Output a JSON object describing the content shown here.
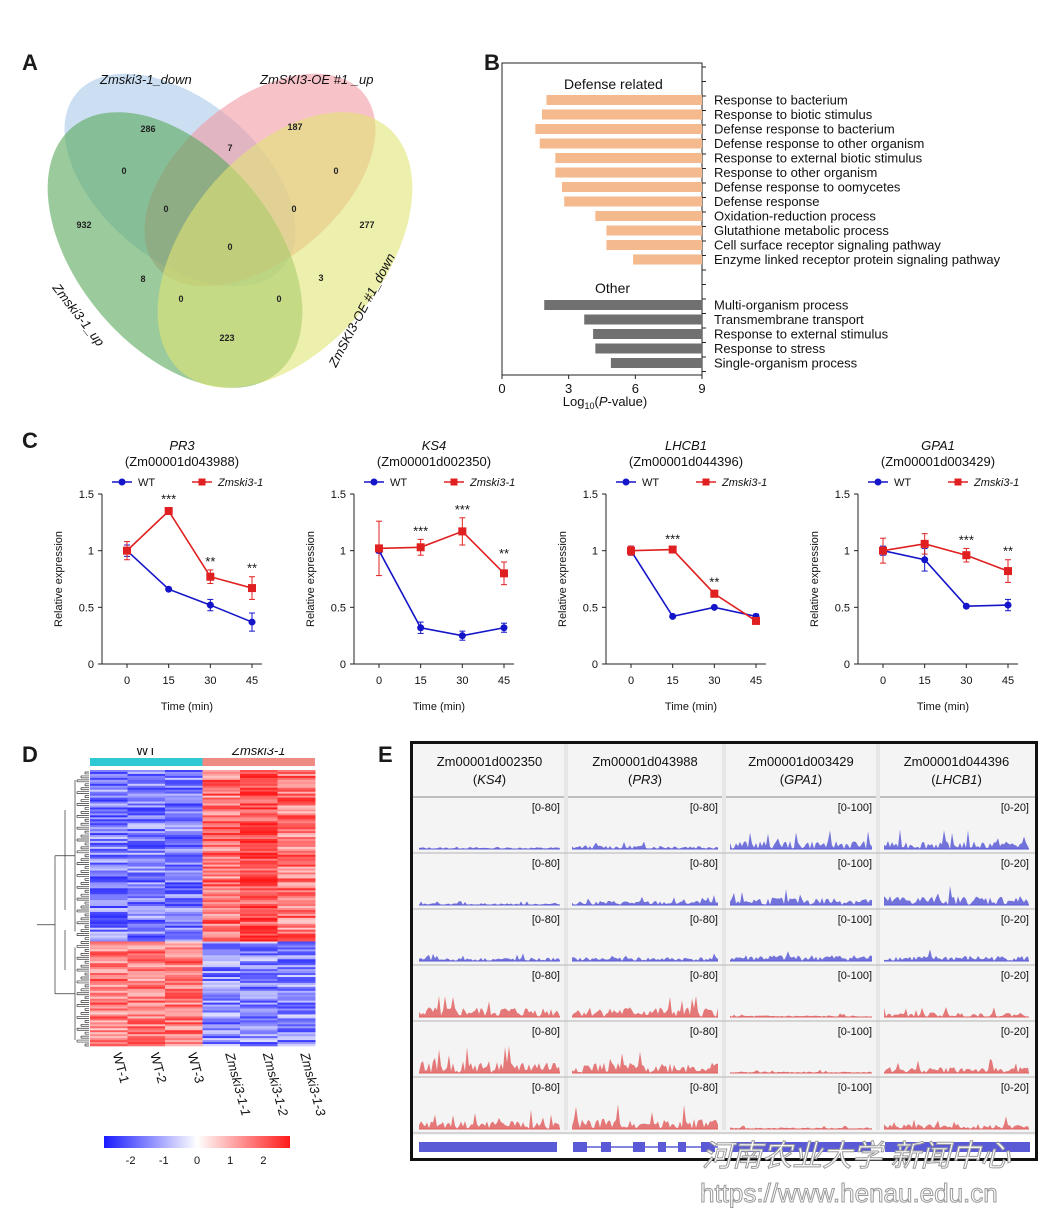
{
  "panel_labels": [
    "A",
    "B",
    "C",
    "D",
    "E"
  ],
  "venn": {
    "sets": [
      {
        "label": "Zmski3-1_down",
        "color": "#a9c8ea"
      },
      {
        "label": "ZmSKI3-OE #1 _up",
        "color": "#f19aa3"
      },
      {
        "label": "Zmski3-1_up",
        "color": "#58a85a"
      },
      {
        "label": "ZmSKI3-OE #1_down",
        "color": "#e1e474"
      }
    ],
    "counts": [
      "286",
      "187",
      "932",
      "277",
      "0",
      "7",
      "0",
      "0",
      "0",
      "0",
      "8",
      "3",
      "0",
      "0",
      "223"
    ]
  },
  "go_bar": {
    "groups": [
      {
        "name": "Defense related",
        "color": "#f4b98c",
        "terms": [
          {
            "label": "Response to bacterium",
            "value": 7.0
          },
          {
            "label": "Response to biotic stimulus",
            "value": 7.2
          },
          {
            "label": "Defense response to bacterium",
            "value": 7.5
          },
          {
            "label": "Defense response to other organism",
            "value": 7.3
          },
          {
            "label": "Response to external biotic stimulus",
            "value": 6.6
          },
          {
            "label": "Response to other organism",
            "value": 6.6
          },
          {
            "label": "Defense response to oomycetes",
            "value": 6.3
          },
          {
            "label": "Defense response",
            "value": 6.2
          },
          {
            "label": "Oxidation-reduction process",
            "value": 4.8
          },
          {
            "label": "Glutathione metabolic process",
            "value": 4.3
          },
          {
            "label": "Cell surface receptor signaling pathway",
            "value": 4.3
          },
          {
            "label": "Enzyme linked receptor protein signaling pathway",
            "value": 3.1
          }
        ]
      },
      {
        "name": "Other",
        "color": "#707070",
        "terms": [
          {
            "label": "Multi-organism process",
            "value": 7.1
          },
          {
            "label": "Transmembrane transport",
            "value": 5.3
          },
          {
            "label": "Response to external stimulus",
            "value": 4.9
          },
          {
            "label": "Response to stress",
            "value": 4.8
          },
          {
            "label": "Single-organism process",
            "value": 4.1
          }
        ]
      }
    ],
    "xticks": [
      "0",
      "3",
      "6",
      "9"
    ],
    "xlabel_pre": "Log",
    "xlabel_sub": "10",
    "xlabel_post": "(",
    "xlabel_italic": "P",
    "xlabel_end": "-value)"
  },
  "chart_data": [
    {
      "type": "line",
      "title": "PR3",
      "subtitle": "(Zm00001d043988)",
      "x": [
        0,
        15,
        30,
        45
      ],
      "xlabel": "Time (min)",
      "ylabel": "Relative expression",
      "yticks": [
        "0",
        "0.5",
        "1",
        "1.5"
      ],
      "ylim": [
        0,
        1.5
      ],
      "series": [
        {
          "name": "WT",
          "color": "#1414c8",
          "marker": "circle",
          "values": [
            1.0,
            0.66,
            0.52,
            0.37
          ],
          "err": [
            0.05,
            0.01,
            0.05,
            0.08
          ]
        },
        {
          "name": "Zmski3-1",
          "color": "#e02020",
          "marker": "square",
          "values": [
            1.0,
            1.35,
            0.77,
            0.67
          ],
          "err": [
            0.08,
            0.03,
            0.06,
            0.1
          ]
        }
      ],
      "sig": [
        "",
        "***",
        "**",
        "**"
      ]
    },
    {
      "type": "line",
      "title": "KS4",
      "subtitle": "(Zm00001d002350)",
      "x": [
        0,
        15,
        30,
        45
      ],
      "xlabel": "Time (min)",
      "ylabel": "Relative expression",
      "yticks": [
        "0",
        "0.5",
        "1",
        "1.5"
      ],
      "ylim": [
        0,
        1.5
      ],
      "series": [
        {
          "name": "WT",
          "color": "#1414c8",
          "marker": "circle",
          "values": [
            1.0,
            0.32,
            0.25,
            0.32
          ],
          "err": [
            0.02,
            0.05,
            0.04,
            0.04
          ]
        },
        {
          "name": "Zmski3-1",
          "color": "#e02020",
          "marker": "square",
          "values": [
            1.02,
            1.03,
            1.17,
            0.8
          ],
          "err": [
            0.24,
            0.07,
            0.12,
            0.1
          ]
        }
      ],
      "sig": [
        "",
        "***",
        "***",
        "**"
      ]
    },
    {
      "type": "line",
      "title": "LHCB1",
      "subtitle": "(Zm00001d044396)",
      "x": [
        0,
        15,
        30,
        45
      ],
      "xlabel": "Time (min)",
      "ylabel": "Relative expression",
      "yticks": [
        "0",
        "0.5",
        "1",
        "1.5"
      ],
      "ylim": [
        0,
        1.5
      ],
      "series": [
        {
          "name": "WT",
          "color": "#1414c8",
          "marker": "circle",
          "values": [
            1.0,
            0.42,
            0.5,
            0.42
          ],
          "err": [
            0.04,
            0.01,
            0.01,
            0.02
          ]
        },
        {
          "name": "Zmski3-1",
          "color": "#e02020",
          "marker": "square",
          "values": [
            1.0,
            1.01,
            0.62,
            0.38
          ],
          "err": [
            0.04,
            0.02,
            0.03,
            0.02
          ]
        }
      ],
      "sig": [
        "",
        "***",
        "**",
        ""
      ]
    },
    {
      "type": "line",
      "title": "GPA1",
      "subtitle": "(Zm00001d003429)",
      "x": [
        0,
        15,
        30,
        45
      ],
      "xlabel": "Time (min)",
      "ylabel": "Relative expression",
      "yticks": [
        "0",
        "0.5",
        "1",
        "1.5"
      ],
      "ylim": [
        0,
        1.5
      ],
      "series": [
        {
          "name": "WT",
          "color": "#1414c8",
          "marker": "circle",
          "values": [
            1.0,
            0.92,
            0.51,
            0.52
          ],
          "err": [
            0.04,
            0.1,
            0.01,
            0.05
          ]
        },
        {
          "name": "Zmski3-1",
          "color": "#e02020",
          "marker": "square",
          "values": [
            1.0,
            1.06,
            0.96,
            0.82
          ],
          "err": [
            0.11,
            0.09,
            0.06,
            0.1
          ]
        }
      ],
      "sig": [
        "",
        "",
        "***",
        "**"
      ]
    }
  ],
  "heatmap": {
    "group_wt": "WT",
    "group_mut": "Zmski3-1",
    "group_wt_color": "#2ec9d4",
    "group_mut_color": "#ee8c84",
    "columns": [
      "WT-1",
      "WT-2",
      "WT-3",
      "Zmski3-1-1",
      "Zmski3-1-2",
      "Zmski3-1-3"
    ],
    "scale_ticks": [
      "-2",
      "-1",
      "0",
      "1",
      "2"
    ],
    "low_color": "#1a1aff",
    "high_color": "#ff1a1a"
  },
  "tracks": {
    "genes": [
      {
        "id": "Zm00001d002350",
        "name": "KS4"
      },
      {
        "id": "Zm00001d043988",
        "name": "PR3"
      },
      {
        "id": "Zm00001d003429",
        "name": "GPA1"
      },
      {
        "id": "Zm00001d044396",
        "name": "LHCB1"
      }
    ],
    "ranges": [
      "[0-80]",
      "[0-80]",
      "[0-100]",
      "[0-20]"
    ],
    "samples": [
      {
        "label": "WT-1",
        "color": "#5a5ad6"
      },
      {
        "label": "WT-2",
        "color": "#5a5ad6"
      },
      {
        "label": "WT-3",
        "color": "#5a5ad6"
      },
      {
        "label": "Zmski3-1-1",
        "color": "#e06060"
      },
      {
        "label": "Zmski3-1-2",
        "color": "#e06060"
      },
      {
        "label": "Zmski3-1-3",
        "color": "#e06060"
      }
    ]
  },
  "watermark": {
    "text_cn": "河南农业大学 新闻中心",
    "url": "https://www.henau.edu.cn"
  }
}
